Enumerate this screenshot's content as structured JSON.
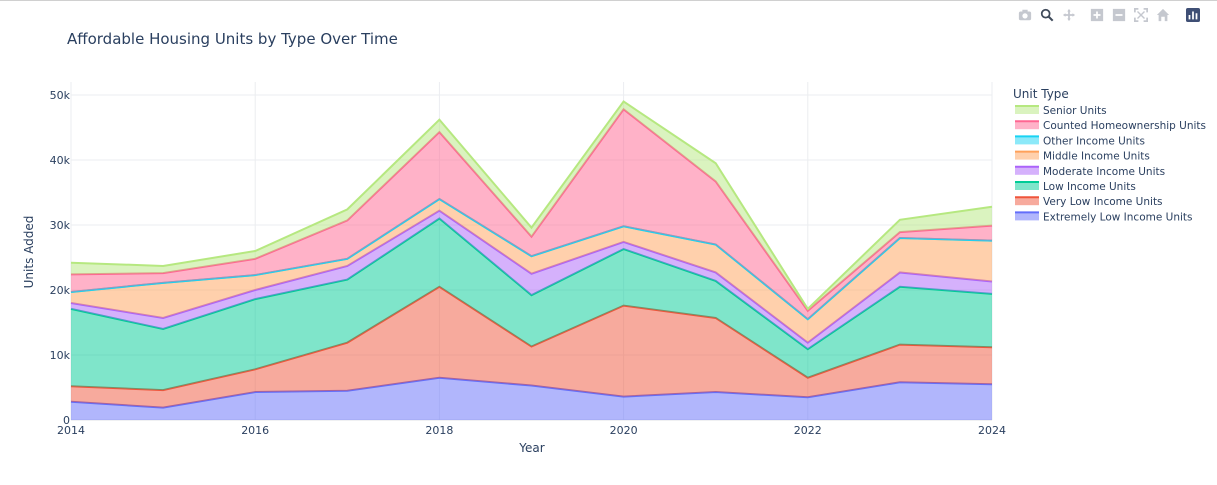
{
  "modebar": {
    "icons": [
      "camera-icon",
      "zoom-icon",
      "pan-icon",
      "zoom-in-icon",
      "zoom-out-icon",
      "autoscale-icon",
      "reset-axes-icon",
      "plotly-logo-icon"
    ]
  },
  "chart_data": {
    "type": "area",
    "stacked": true,
    "title": "Affordable Housing Units by Type Over Time",
    "xlabel": "Year",
    "ylabel": "Units Added",
    "xlim": [
      2014,
      2024
    ],
    "ylim": [
      0,
      52000
    ],
    "x_ticks": [
      2014,
      2016,
      2018,
      2020,
      2022,
      2024
    ],
    "y_ticks": [
      0,
      10000,
      20000,
      30000,
      40000,
      50000
    ],
    "y_tick_labels": [
      "0",
      "10k",
      "20k",
      "30k",
      "40k",
      "50k"
    ],
    "grid": true,
    "legend_title": "Unit Type",
    "legend_position": "right",
    "x": [
      2014,
      2015,
      2016,
      2017,
      2018,
      2019,
      2020,
      2021,
      2022,
      2023,
      2024
    ],
    "series": [
      {
        "name": "Extremely Low Income Units",
        "color": "#636efa",
        "fill": "rgba(99,110,250,0.5)",
        "values": [
          2800,
          1900,
          4300,
          4500,
          6500,
          5300,
          3600,
          4300,
          3500,
          5800,
          5500
        ]
      },
      {
        "name": "Very Low Income Units",
        "color": "#ef553b",
        "fill": "rgba(239,85,59,0.5)",
        "values": [
          2400,
          2700,
          3500,
          7400,
          14000,
          6000,
          14000,
          11400,
          3000,
          5800,
          5700
        ]
      },
      {
        "name": "Low Income Units",
        "color": "#00cc96",
        "fill": "rgba(0,204,150,0.5)",
        "values": [
          11900,
          9400,
          10800,
          9700,
          10500,
          7900,
          8700,
          5700,
          4400,
          8900,
          8200
        ]
      },
      {
        "name": "Moderate Income Units",
        "color": "#ab63fa",
        "fill": "rgba(171,99,250,0.5)",
        "values": [
          900,
          1700,
          1400,
          2100,
          1200,
          3300,
          1100,
          1300,
          1000,
          2200,
          1900
        ]
      },
      {
        "name": "Middle Income Units",
        "color": "#ffa15a",
        "fill": "rgba(255,161,90,0.5)",
        "values": [
          1700,
          5400,
          2300,
          1100,
          1800,
          2700,
          2400,
          4300,
          3600,
          5300,
          6300
        ]
      },
      {
        "name": "Other Income Units",
        "color": "#19d3f3",
        "fill": "rgba(25,211,243,0.5)",
        "values": [
          0,
          0,
          0,
          0,
          0,
          0,
          0,
          0,
          0,
          0,
          0
        ]
      },
      {
        "name": "Counted Homeownership Units",
        "color": "#ff6692",
        "fill": "rgba(255,102,146,0.5)",
        "values": [
          2700,
          1500,
          2500,
          5900,
          10300,
          3000,
          18000,
          9700,
          1300,
          900,
          2300
        ]
      },
      {
        "name": "Senior Units",
        "color": "#b6e880",
        "fill": "rgba(182,232,128,0.5)",
        "values": [
          1800,
          1100,
          1200,
          1700,
          1900,
          1400,
          1200,
          2800,
          300,
          1900,
          2900
        ]
      }
    ]
  }
}
